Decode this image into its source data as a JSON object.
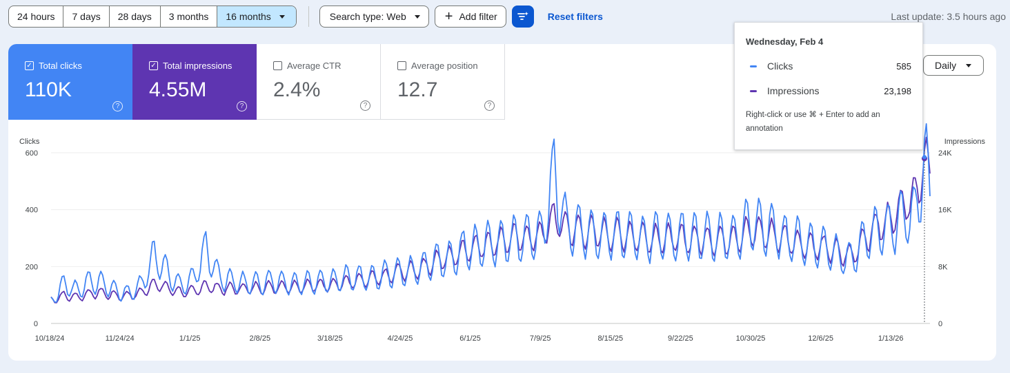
{
  "toolbar": {
    "ranges": [
      "24 hours",
      "7 days",
      "28 days",
      "3 months",
      "16 months"
    ],
    "active_range": "16 months",
    "search_type": "Search type: Web",
    "add_filter": "Add filter",
    "reset_filters": "Reset filters",
    "last_update": "Last update: 3.5 hours ago"
  },
  "metrics": [
    {
      "label": "Total clicks",
      "value": "110K",
      "checked": true,
      "color": "#4285f4"
    },
    {
      "label": "Total impressions",
      "value": "4.55M",
      "checked": true,
      "color": "#5e35b1"
    },
    {
      "label": "Average CTR",
      "value": "2.4%",
      "checked": false
    },
    {
      "label": "Average position",
      "value": "12.7",
      "checked": false
    }
  ],
  "granularity": "Daily",
  "tooltip": {
    "date": "Wednesday, Feb 4",
    "rows": [
      {
        "name": "Clicks",
        "value": "585",
        "color": "#4285f4"
      },
      {
        "name": "Impressions",
        "value": "23,198",
        "color": "#5e35b1"
      }
    ],
    "note": "Right-click or use ⌘ + Enter to add an annotation"
  },
  "chart_data": {
    "type": "line",
    "y_left_label": "Clicks",
    "y_right_label": "Impressions",
    "y_left_ticks": [
      "0",
      "200",
      "400",
      "600"
    ],
    "y_right_ticks": [
      "0",
      "8K",
      "16K",
      "24K"
    ],
    "y_left_range": [
      0,
      600
    ],
    "y_right_range": [
      0,
      24000
    ],
    "x_ticks": [
      "10/18/24",
      "11/24/24",
      "1/1/25",
      "2/8/25",
      "3/18/25",
      "4/24/25",
      "6/1/25",
      "7/9/25",
      "8/15/25",
      "9/22/25",
      "10/30/25",
      "12/6/25",
      "1/13/26"
    ],
    "x_range": [
      "2024-10-18",
      "2026-02-07"
    ],
    "grid": true,
    "legend": "none",
    "hover_date": "2026-02-04",
    "series": [
      {
        "name": "Clicks",
        "axis": "left",
        "color": "#4285f4",
        "points": [
          [
            "2024-10-18",
            75
          ],
          [
            "2024-10-25",
            140
          ],
          [
            "2024-11-01",
            115
          ],
          [
            "2024-11-08",
            150
          ],
          [
            "2024-11-15",
            140
          ],
          [
            "2024-11-22",
            115
          ],
          [
            "2024-11-29",
            105
          ],
          [
            "2024-12-06",
            135
          ],
          [
            "2024-12-13",
            240
          ],
          [
            "2024-12-20",
            180
          ],
          [
            "2024-12-27",
            130
          ],
          [
            "2025-01-03",
            155
          ],
          [
            "2025-01-10",
            260
          ],
          [
            "2025-01-17",
            165
          ],
          [
            "2025-01-24",
            150
          ],
          [
            "2025-01-31",
            140
          ],
          [
            "2025-02-07",
            140
          ],
          [
            "2025-02-14",
            150
          ],
          [
            "2025-02-21",
            145
          ],
          [
            "2025-02-28",
            140
          ],
          [
            "2025-03-07",
            145
          ],
          [
            "2025-03-14",
            150
          ],
          [
            "2025-03-21",
            150
          ],
          [
            "2025-03-28",
            160
          ],
          [
            "2025-04-04",
            160
          ],
          [
            "2025-04-11",
            160
          ],
          [
            "2025-04-18",
            175
          ],
          [
            "2025-04-25",
            180
          ],
          [
            "2025-05-02",
            185
          ],
          [
            "2025-05-09",
            200
          ],
          [
            "2025-05-16",
            225
          ],
          [
            "2025-05-23",
            225
          ],
          [
            "2025-05-30",
            260
          ],
          [
            "2025-06-06",
            270
          ],
          [
            "2025-06-13",
            280
          ],
          [
            "2025-06-20",
            290
          ],
          [
            "2025-06-27",
            300
          ],
          [
            "2025-07-04",
            300
          ],
          [
            "2025-07-11",
            310
          ],
          [
            "2025-07-18",
            520
          ],
          [
            "2025-07-25",
            340
          ],
          [
            "2025-08-01",
            330
          ],
          [
            "2025-08-08",
            310
          ],
          [
            "2025-08-15",
            310
          ],
          [
            "2025-08-22",
            315
          ],
          [
            "2025-08-29",
            305
          ],
          [
            "2025-09-05",
            300
          ],
          [
            "2025-09-12",
            305
          ],
          [
            "2025-09-19",
            305
          ],
          [
            "2025-09-26",
            310
          ],
          [
            "2025-10-03",
            305
          ],
          [
            "2025-10-10",
            305
          ],
          [
            "2025-10-17",
            300
          ],
          [
            "2025-10-24",
            305
          ],
          [
            "2025-10-31",
            345
          ],
          [
            "2025-11-07",
            345
          ],
          [
            "2025-11-14",
            330
          ],
          [
            "2025-11-21",
            300
          ],
          [
            "2025-11-28",
            290
          ],
          [
            "2025-12-05",
            275
          ],
          [
            "2025-12-12",
            265
          ],
          [
            "2025-12-19",
            240
          ],
          [
            "2025-12-26",
            225
          ],
          [
            "2026-01-02",
            290
          ],
          [
            "2026-01-09",
            330
          ],
          [
            "2026-01-16",
            330
          ],
          [
            "2026-01-23",
            370
          ],
          [
            "2026-01-30",
            380
          ],
          [
            "2026-02-04",
            585
          ],
          [
            "2026-02-07",
            450
          ]
        ]
      },
      {
        "name": "Impressions",
        "axis": "right",
        "color": "#5e35b1",
        "points": [
          [
            "2024-10-18",
            3300
          ],
          [
            "2024-10-25",
            3900
          ],
          [
            "2024-11-01",
            3700
          ],
          [
            "2024-11-08",
            4200
          ],
          [
            "2024-11-15",
            4300
          ],
          [
            "2024-11-22",
            3900
          ],
          [
            "2024-11-29",
            3900
          ],
          [
            "2024-12-06",
            4300
          ],
          [
            "2024-12-13",
            5600
          ],
          [
            "2024-12-20",
            5000
          ],
          [
            "2024-12-27",
            4400
          ],
          [
            "2025-01-03",
            4500
          ],
          [
            "2025-01-10",
            5300
          ],
          [
            "2025-01-17",
            4900
          ],
          [
            "2025-01-24",
            4900
          ],
          [
            "2025-01-31",
            4900
          ],
          [
            "2025-02-07",
            5000
          ],
          [
            "2025-02-14",
            5100
          ],
          [
            "2025-02-21",
            5200
          ],
          [
            "2025-02-28",
            5200
          ],
          [
            "2025-03-07",
            5300
          ],
          [
            "2025-03-14",
            5400
          ],
          [
            "2025-03-21",
            5500
          ],
          [
            "2025-03-28",
            5800
          ],
          [
            "2025-04-04",
            6000
          ],
          [
            "2025-04-11",
            6300
          ],
          [
            "2025-04-18",
            6600
          ],
          [
            "2025-04-25",
            7300
          ],
          [
            "2025-05-02",
            7400
          ],
          [
            "2025-05-09",
            8000
          ],
          [
            "2025-05-16",
            8900
          ],
          [
            "2025-05-23",
            9300
          ],
          [
            "2025-05-30",
            10300
          ],
          [
            "2025-06-06",
            10800
          ],
          [
            "2025-06-13",
            11200
          ],
          [
            "2025-06-20",
            11700
          ],
          [
            "2025-06-27",
            12000
          ],
          [
            "2025-07-04",
            12000
          ],
          [
            "2025-07-11",
            12400
          ],
          [
            "2025-07-18",
            14800
          ],
          [
            "2025-07-25",
            13400
          ],
          [
            "2025-08-01",
            13000
          ],
          [
            "2025-08-08",
            12800
          ],
          [
            "2025-08-15",
            12600
          ],
          [
            "2025-08-22",
            12500
          ],
          [
            "2025-08-29",
            12300
          ],
          [
            "2025-09-05",
            12100
          ],
          [
            "2025-09-12",
            12000
          ],
          [
            "2025-09-19",
            11900
          ],
          [
            "2025-09-26",
            11900
          ],
          [
            "2025-10-03",
            11800
          ],
          [
            "2025-10-10",
            11800
          ],
          [
            "2025-10-17",
            11700
          ],
          [
            "2025-10-24",
            12000
          ],
          [
            "2025-10-31",
            12800
          ],
          [
            "2025-11-07",
            12900
          ],
          [
            "2025-11-14",
            12400
          ],
          [
            "2025-11-21",
            11900
          ],
          [
            "2025-11-28",
            11300
          ],
          [
            "2025-12-05",
            10900
          ],
          [
            "2025-12-12",
            10600
          ],
          [
            "2025-12-19",
            10000
          ],
          [
            "2025-12-26",
            9400
          ],
          [
            "2026-01-02",
            11800
          ],
          [
            "2026-01-09",
            13600
          ],
          [
            "2026-01-16",
            14500
          ],
          [
            "2026-01-23",
            16800
          ],
          [
            "2026-01-30",
            18000
          ],
          [
            "2026-02-04",
            23198
          ],
          [
            "2026-02-07",
            21000
          ]
        ]
      }
    ]
  }
}
